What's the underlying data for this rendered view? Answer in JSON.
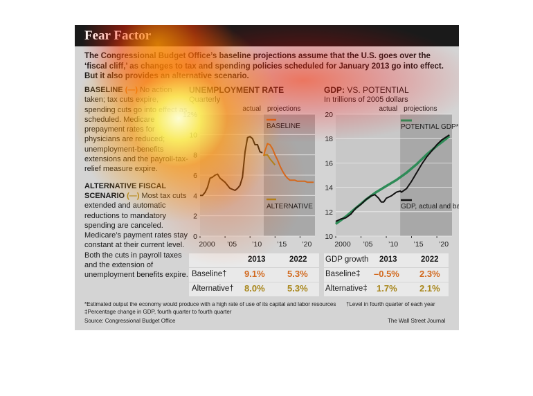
{
  "title": "Fear Factor",
  "intro": "The Congressional Budget Office’s baseline projections assume that the U.S. goes over the ‘fiscal cliff,’ as changes to tax and spending policies scheduled for January 2013 go into effect. But it also provides an alternative scenario.",
  "left": {
    "baseline_head": "BASELINE",
    "baseline_swatch": "(—)",
    "baseline_text": "No action taken; tax cuts expire, spending cuts go into effect as scheduled. Medicare prepayment rates for physicians are reduced; unemployment-benefits extensions and the payroll-tax-relief measure expire.",
    "alt_head": "ALTERNATIVE FISCAL SCENARIO",
    "alt_swatch": "(—)",
    "alt_text": "Most tax cuts extended and automatic reductions to mandatory spending are canceled. Medicare’s payment rates stay constant at their current level. Both the cuts in payroll taxes and the extension of unemployment benefits expire."
  },
  "unemp": {
    "title": "UNEMPLOYMENT RATE",
    "subtitle": "Quarterly",
    "actual_label": "actual",
    "proj_label": "projections",
    "baseline_label": "BASELINE",
    "alt_label": "ALTERNATIVE",
    "table": {
      "headers": [
        "",
        "2013",
        "2022"
      ],
      "rows": [
        {
          "label": "Baseline†",
          "v1": "9.1%",
          "v2": "5.3%"
        },
        {
          "label": "Alternative†",
          "v1": "8.0%",
          "v2": "5.3%"
        }
      ]
    }
  },
  "gdp": {
    "title": "GDP:",
    "title2": "VS. POTENTIAL",
    "subtitle": "In trillions of 2005 dollars",
    "actual_label": "actual",
    "proj_label": "projections",
    "potential_label": "POTENTIAL GDP*",
    "gdp_label": "GDP, actual and baseline forecast",
    "table": {
      "headers": [
        "GDP growth",
        "2013",
        "2022"
      ],
      "rows": [
        {
          "label": "Baseline‡",
          "v1": "–0.5%",
          "v2": "2.3%"
        },
        {
          "label": "Alternative‡",
          "v1": "1.7%",
          "v2": "2.1%"
        }
      ]
    }
  },
  "footnotes": {
    "f1": "*Estimated output the economy would produce with a high rate of use of its capital and labor resources",
    "f2": "†Level in fourth quarter of each year",
    "f3": "‡Percentage change in GDP, fourth quarter to fourth quarter",
    "source": "Source: Congressional Budget Office",
    "credit": "The Wall Street Journal"
  },
  "colors": {
    "baseline": "#d2691e",
    "alternative": "#a8861a",
    "potential": "#2e8b57",
    "actual": "#111111",
    "projection_shade": "#a8a8a8",
    "value_text": "#d2691e"
  },
  "chart_data": [
    {
      "type": "line",
      "title": "UNEMPLOYMENT RATE",
      "subtitle": "Quarterly",
      "ylim": [
        0,
        12
      ],
      "yticks": [
        0,
        2,
        4,
        6,
        8,
        10,
        12
      ],
      "ytick_labels": [
        "0",
        "2",
        "4",
        "6",
        "8",
        "10",
        "12%"
      ],
      "xlim": [
        2000,
        2023
      ],
      "xticks": [
        2000,
        2005,
        2010,
        2015,
        2020
      ],
      "xtick_labels": [
        "2000",
        "’05",
        "’10",
        "’15",
        "’20"
      ],
      "projection_start": 2012.75,
      "series": [
        {
          "name": "actual",
          "x": [
            2000,
            2000.5,
            2001,
            2001.5,
            2002,
            2002.5,
            2003,
            2003.5,
            2004,
            2004.5,
            2005,
            2005.5,
            2006,
            2006.5,
            2007,
            2007.5,
            2008,
            2008.5,
            2009,
            2009.5,
            2010,
            2010.5,
            2011,
            2011.5,
            2012,
            2012.5
          ],
          "values": [
            4.0,
            4.0,
            4.3,
            4.8,
            5.7,
            5.8,
            6.0,
            6.1,
            5.7,
            5.5,
            5.3,
            5.0,
            4.7,
            4.6,
            4.5,
            4.7,
            5.0,
            5.8,
            8.3,
            9.7,
            9.8,
            9.6,
            9.0,
            9.0,
            8.3,
            8.2
          ]
        },
        {
          "name": "BASELINE",
          "x": [
            2012.75,
            2013,
            2013.5,
            2014,
            2014.5,
            2015,
            2015.5,
            2016,
            2016.5,
            2017,
            2017.5,
            2018,
            2018.5,
            2019,
            2019.5,
            2020,
            2020.5,
            2021,
            2021.5,
            2022,
            2022.75
          ],
          "values": [
            7.9,
            8.4,
            9.1,
            9.0,
            8.6,
            8.0,
            7.5,
            6.9,
            6.4,
            6.0,
            5.7,
            5.5,
            5.5,
            5.5,
            5.4,
            5.4,
            5.4,
            5.4,
            5.3,
            5.3,
            5.3
          ]
        },
        {
          "name": "ALTERNATIVE",
          "x": [
            2012.75,
            2013,
            2013.5,
            2014,
            2014.5,
            2015
          ],
          "values": [
            7.9,
            8.0,
            8.0,
            7.6,
            7.3,
            7.0
          ]
        }
      ]
    },
    {
      "type": "line",
      "title": "GDP: VS. POTENTIAL",
      "subtitle": "In trillions of 2005 dollars",
      "ylim": [
        10,
        20
      ],
      "yticks": [
        10,
        12,
        14,
        16,
        18,
        20
      ],
      "xlim": [
        2000,
        2023
      ],
      "xticks": [
        2000,
        2005,
        2010,
        2015,
        2020
      ],
      "xtick_labels": [
        "2000",
        "’05",
        "’10",
        "’15",
        "’20"
      ],
      "projection_start": 2012.75,
      "series": [
        {
          "name": "POTENTIAL GDP*",
          "x": [
            2000,
            2002,
            2004,
            2006,
            2008,
            2010,
            2012,
            2014,
            2016,
            2018,
            2020,
            2022.5
          ],
          "values": [
            11.0,
            11.6,
            12.3,
            13.0,
            13.6,
            14.1,
            14.6,
            15.2,
            15.9,
            16.7,
            17.4,
            18.2
          ]
        },
        {
          "name": "GDP, actual and baseline forecast",
          "x": [
            2000,
            2001,
            2002,
            2003,
            2004,
            2005,
            2006,
            2007,
            2007.75,
            2008.5,
            2009,
            2009.5,
            2010,
            2011,
            2012,
            2012.75,
            2013,
            2014,
            2015,
            2016,
            2017,
            2018,
            2019,
            2020,
            2021,
            2022.5
          ],
          "values": [
            11.2,
            11.4,
            11.5,
            11.8,
            12.3,
            12.6,
            13.0,
            13.3,
            13.4,
            13.1,
            12.8,
            12.8,
            13.1,
            13.3,
            13.6,
            13.7,
            13.6,
            13.9,
            14.5,
            15.2,
            15.9,
            16.5,
            17.0,
            17.5,
            17.9,
            18.3
          ]
        }
      ]
    }
  ]
}
